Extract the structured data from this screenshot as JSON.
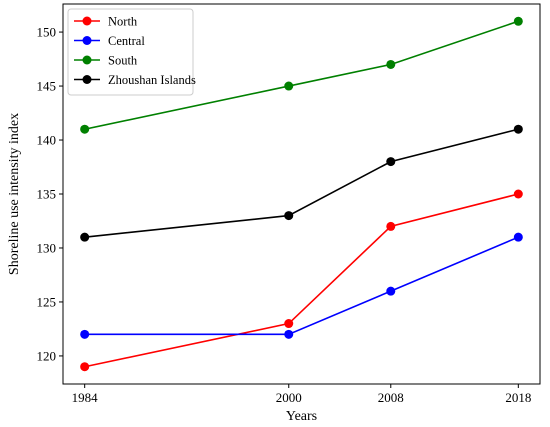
{
  "chart_data": {
    "type": "line",
    "x": [
      1984,
      2000,
      2008,
      2018
    ],
    "xlabel": "Years",
    "ylabel": "Shoreline use intensity index",
    "xticks": [
      "1984",
      "2000",
      "2008",
      "2018"
    ],
    "yticks": [
      120,
      125,
      130,
      135,
      140,
      145,
      150
    ],
    "xlim": [
      1982.3,
      2019.7
    ],
    "ylim": [
      117.4,
      152.6
    ],
    "grid": false,
    "legend_position": "top-left",
    "series": [
      {
        "name": "North",
        "color": "#ff0000",
        "values": [
          119,
          123,
          132,
          135
        ]
      },
      {
        "name": "Central",
        "color": "#0000ff",
        "values": [
          122,
          122,
          126,
          131
        ]
      },
      {
        "name": "South",
        "color": "#008000",
        "values": [
          141,
          145,
          147,
          151
        ]
      },
      {
        "name": "Zhoushan Islands",
        "color": "#000000",
        "values": [
          131,
          133,
          138,
          141
        ]
      }
    ]
  }
}
